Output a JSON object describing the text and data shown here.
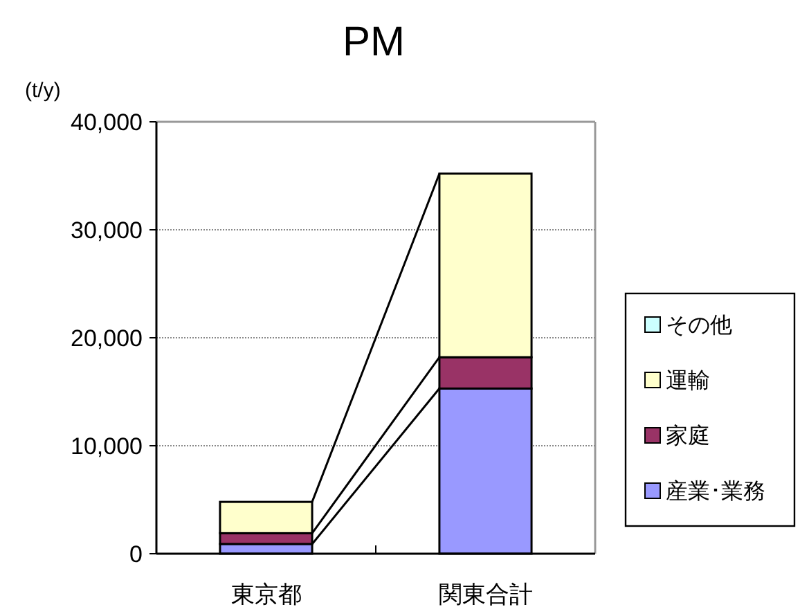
{
  "chart_data": {
    "type": "bar",
    "title": "PM",
    "ylabel": "(t/y)",
    "stacked": true,
    "categories": [
      "東京都",
      "関東合計"
    ],
    "series": [
      {
        "name": "産業･業務",
        "color": "#9999ff",
        "values": [
          900,
          15300
        ]
      },
      {
        "name": "家庭",
        "color": "#993366",
        "values": [
          1000,
          2900
        ]
      },
      {
        "name": "運輸",
        "color": "#ffffcc",
        "values": [
          2900,
          17000
        ]
      },
      {
        "name": "その他",
        "color": "#ccffff",
        "values": [
          0,
          0
        ]
      }
    ],
    "ylim": [
      0,
      40000
    ],
    "yticks": [
      {
        "value": 0,
        "label": "0"
      },
      {
        "value": 10000,
        "label": "10,000"
      },
      {
        "value": 20000,
        "label": "20,000"
      },
      {
        "value": 30000,
        "label": "30,000"
      },
      {
        "value": 40000,
        "label": "40,000"
      }
    ],
    "grid": "y",
    "legend": "right"
  }
}
